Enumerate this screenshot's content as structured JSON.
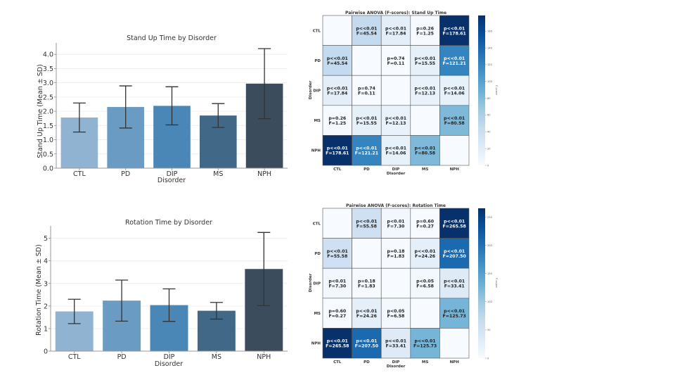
{
  "chart_data": [
    {
      "id": "standup-bar",
      "type": "bar",
      "title": "Stand Up Time by Disorder",
      "xlabel": "Disorder",
      "ylabel": "Stand Up Time (Mean ± SD)",
      "categories": [
        "CTL",
        "PD",
        "DIP",
        "MS",
        "NPH"
      ],
      "values": [
        1.78,
        2.15,
        2.19,
        1.85,
        2.97
      ],
      "errors": [
        0.51,
        0.74,
        0.67,
        0.42,
        1.23
      ],
      "colors": [
        "#8fb3d0",
        "#6a9cc3",
        "#4a86b6",
        "#416886",
        "#3b4d5c"
      ],
      "yticks": [
        "0.0",
        "0.5",
        "1.0",
        "1.5",
        "2.0",
        "2.5",
        "3.0",
        "3.5",
        "4.0"
      ],
      "ytick_values": [
        0,
        0.5,
        1.0,
        1.5,
        2.0,
        2.5,
        3.0,
        3.5,
        4.0
      ],
      "ylim": [
        0,
        4.4
      ],
      "grid": true
    },
    {
      "id": "rotation-bar",
      "type": "bar",
      "title": "Rotation Time by Disorder",
      "xlabel": "Disorder",
      "ylabel": "Rotation Time (Mean ± SD)",
      "categories": [
        "CTL",
        "PD",
        "DIP",
        "MS",
        "NPH"
      ],
      "values": [
        1.76,
        2.24,
        2.04,
        1.79,
        3.64
      ],
      "errors": [
        0.54,
        0.91,
        0.72,
        0.37,
        1.62
      ],
      "colors": [
        "#8fb3d0",
        "#6a9cc3",
        "#4a86b6",
        "#416886",
        "#3b4d5c"
      ],
      "yticks": [
        "0",
        "1",
        "2",
        "3",
        "4",
        "5"
      ],
      "ytick_values": [
        0,
        1,
        2,
        3,
        4,
        5
      ],
      "ylim": [
        0,
        5.55
      ],
      "grid": true
    },
    {
      "id": "standup-heatmap",
      "type": "heatmap",
      "title": "Pairwise ANOVA (F-scores): Stand Up Time",
      "xlabel": "Disorder",
      "ylabel": "Disorder",
      "categories": [
        "CTL",
        "PD",
        "DIP",
        "MS",
        "NPH"
      ],
      "colorbar_label": "F-score",
      "colorbar_ticks": [
        0,
        20,
        40,
        60,
        80,
        100,
        120,
        140,
        160
      ],
      "vmax": 178.61,
      "f_values": [
        [
          null,
          45.54,
          17.84,
          1.25,
          178.61
        ],
        [
          45.54,
          null,
          0.11,
          15.55,
          121.21
        ],
        [
          17.84,
          0.11,
          null,
          12.13,
          14.06
        ],
        [
          1.25,
          15.55,
          12.13,
          null,
          80.58
        ],
        [
          178.61,
          121.21,
          14.06,
          80.58,
          null
        ]
      ],
      "p_labels": [
        [
          null,
          "p<<0.01",
          "p<<0.01",
          "p=0.26",
          "p<<0.01"
        ],
        [
          "p<<0.01",
          null,
          "p=0.74",
          "p<<0.01",
          "p<<0.01"
        ],
        [
          "p<<0.01",
          "p=0.74",
          null,
          "p<<0.01",
          "p<<0.01"
        ],
        [
          "p=0.26",
          "p<<0.01",
          "p<<0.01",
          null,
          "p<<0.01"
        ],
        [
          "p<<0.01",
          "p<<0.01",
          "p<<0.01",
          "p<<0.01",
          null
        ]
      ],
      "f_labels": [
        [
          null,
          "F=45.54",
          "F=17.84",
          "F=1.25",
          "F=178.61"
        ],
        [
          "F=45.54",
          null,
          "F=0.11",
          "F=15.55",
          "F=121.21"
        ],
        [
          "F=17.84",
          "F=0.11",
          null,
          "F=12.13",
          "F=14.06"
        ],
        [
          "F=1.25",
          "F=15.55",
          "F=12.13",
          null,
          "F=80.58"
        ],
        [
          "F=178.61",
          "F=121.21",
          "F=14.06",
          "F=80.58",
          null
        ]
      ]
    },
    {
      "id": "rotation-heatmap",
      "type": "heatmap",
      "title": "Pairwise ANOVA (F-scores): Rotation Time",
      "xlabel": "Disorder",
      "ylabel": "Disorder",
      "categories": [
        "CTL",
        "PD",
        "DIP",
        "MS",
        "NPH"
      ],
      "colorbar_label": "F-score",
      "colorbar_ticks": [
        0,
        50,
        100,
        150,
        200,
        250
      ],
      "vmax": 265.58,
      "f_values": [
        [
          null,
          55.58,
          7.3,
          0.27,
          265.58
        ],
        [
          55.58,
          null,
          1.83,
          24.26,
          207.5
        ],
        [
          7.3,
          1.83,
          null,
          6.58,
          33.41
        ],
        [
          0.27,
          24.26,
          6.58,
          null,
          125.73
        ],
        [
          265.58,
          207.5,
          33.41,
          125.73,
          null
        ]
      ],
      "p_labels": [
        [
          null,
          "p<<0.01",
          "p<0.01",
          "p=0.60",
          "p<<0.01"
        ],
        [
          "p<<0.01",
          null,
          "p=0.18",
          "p<<0.01",
          "p<<0.01"
        ],
        [
          "p<0.01",
          "p=0.18",
          null,
          "p<0.05",
          "p<<0.01"
        ],
        [
          "p=0.60",
          "p<<0.01",
          "p<0.05",
          null,
          "p<<0.01"
        ],
        [
          "p<<0.01",
          "p<<0.01",
          "p<<0.01",
          "p<<0.01",
          null
        ]
      ],
      "f_labels": [
        [
          null,
          "F=55.58",
          "F=7.30",
          "F=0.27",
          "F=265.58"
        ],
        [
          "F=55.58",
          null,
          "F=1.83",
          "F=24.26",
          "F=207.50"
        ],
        [
          "F=7.30",
          "F=1.83",
          null,
          "F=6.58",
          "F=33.41"
        ],
        [
          "F=0.27",
          "F=24.26",
          "F=6.58",
          null,
          "F=125.73"
        ],
        [
          "F=265.58",
          "F=207.50",
          "F=33.41",
          "F=125.73",
          null
        ]
      ]
    }
  ]
}
